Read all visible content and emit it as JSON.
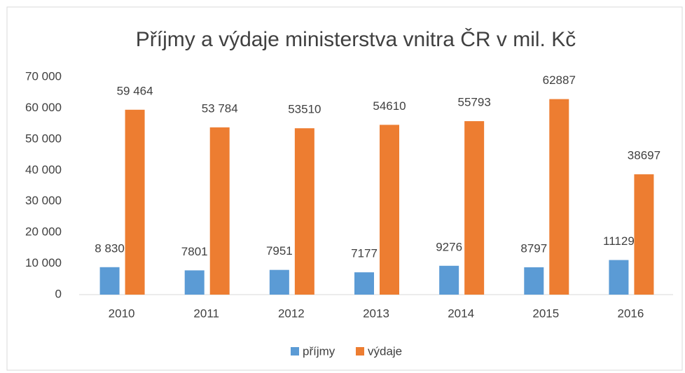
{
  "chart_data": {
    "type": "bar",
    "title": "Příjmy a výdaje ministerstva vnitra ČR v mil. Kč",
    "categories": [
      "2010",
      "2011",
      "2012",
      "2013",
      "2014",
      "2015",
      "2016"
    ],
    "series": [
      {
        "name": "příjmy",
        "color": "#5b9bd5",
        "values": [
          8830,
          7801,
          7951,
          7177,
          9276,
          8797,
          11129
        ],
        "value_labels": [
          "8 830",
          "7801",
          "7951",
          "7177",
          "9276",
          "8797",
          "11129"
        ]
      },
      {
        "name": "výdaje",
        "color": "#ed7d31",
        "values": [
          59464,
          53784,
          53510,
          54610,
          55793,
          62887,
          38697
        ],
        "value_labels": [
          "59 464",
          "53 784",
          "53510",
          "54610",
          "55793",
          "62887",
          "38697"
        ]
      }
    ],
    "ylim": [
      0,
      70000
    ],
    "yticks": [
      0,
      {
        "value": 10000,
        "label": "10 000"
      },
      {
        "value": 20000,
        "label": "20 000"
      },
      {
        "value": 30000,
        "label": "30 000"
      },
      {
        "value": 40000,
        "label": "40 000"
      },
      {
        "value": 50000,
        "label": "50 000"
      },
      {
        "value": 60000,
        "label": "60 000"
      },
      {
        "value": 70000,
        "label": "70 000"
      }
    ],
    "grid": false,
    "legend": "bottom"
  }
}
